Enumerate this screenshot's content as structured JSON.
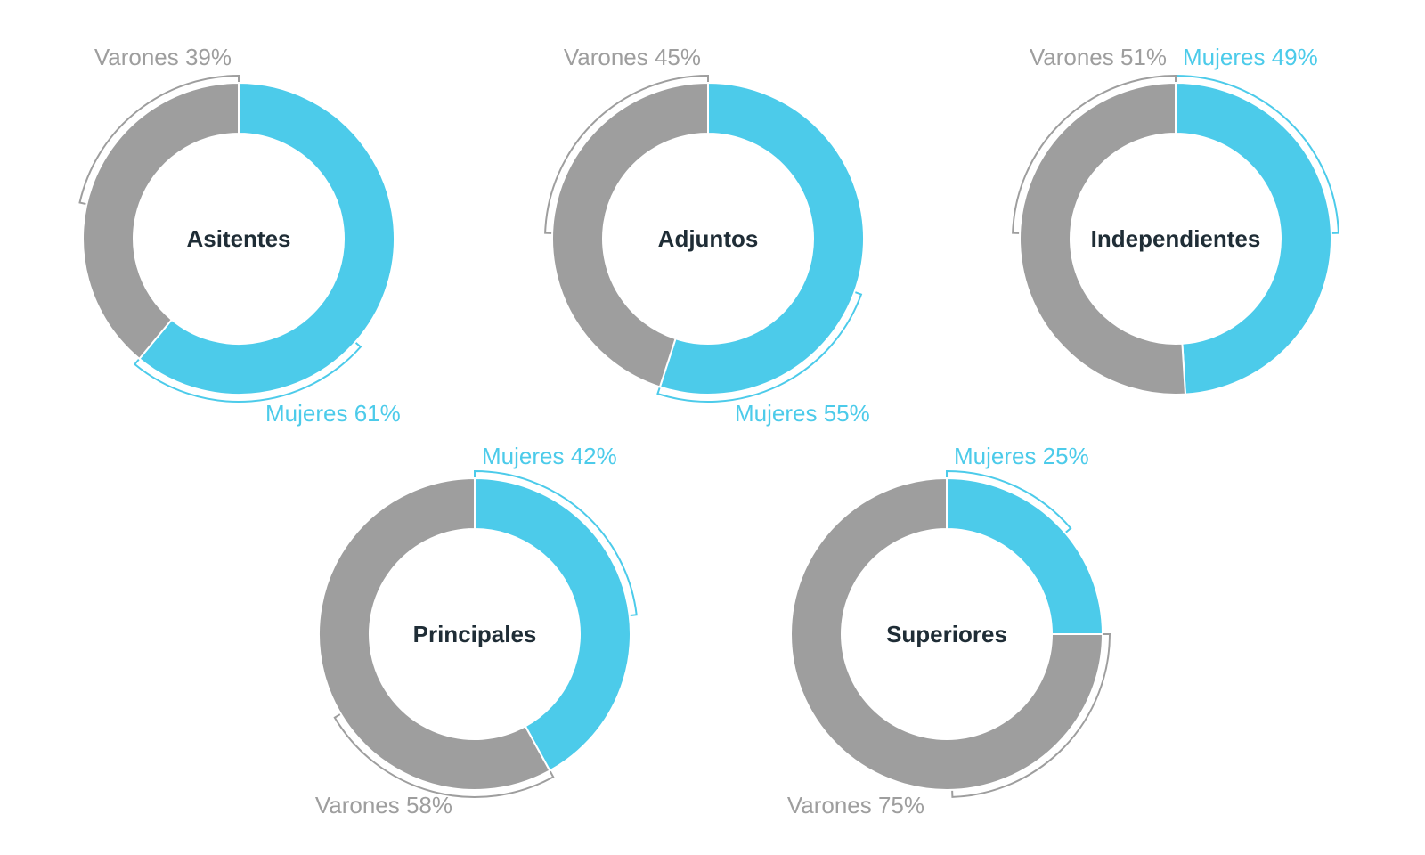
{
  "colors": {
    "mujeres": "#4ccbea",
    "varones": "#9e9e9e",
    "center_text": "#1f2d36"
  },
  "chart_data": [
    {
      "type": "pie",
      "title": "Asitentes",
      "categories": [
        "Mujeres",
        "Varones"
      ],
      "values": [
        61,
        39
      ],
      "labels": [
        "Mujeres 61%",
        "Varones 39%"
      ]
    },
    {
      "type": "pie",
      "title": "Adjuntos",
      "categories": [
        "Mujeres",
        "Varones"
      ],
      "values": [
        55,
        45
      ],
      "labels": [
        "Mujeres 55%",
        "Varones 45%"
      ]
    },
    {
      "type": "pie",
      "title": "Independientes",
      "categories": [
        "Mujeres",
        "Varones"
      ],
      "values": [
        49,
        51
      ],
      "labels": [
        "Mujeres 49%",
        "Varones 51%"
      ]
    },
    {
      "type": "pie",
      "title": "Principales",
      "categories": [
        "Mujeres",
        "Varones"
      ],
      "values": [
        42,
        58
      ],
      "labels": [
        "Mujeres 42%",
        "Varones 58%"
      ]
    },
    {
      "type": "pie",
      "title": "Superiores",
      "categories": [
        "Mujeres",
        "Varones"
      ],
      "values": [
        25,
        75
      ],
      "labels": [
        "Mujeres 25%",
        "Varones 75%"
      ]
    }
  ]
}
